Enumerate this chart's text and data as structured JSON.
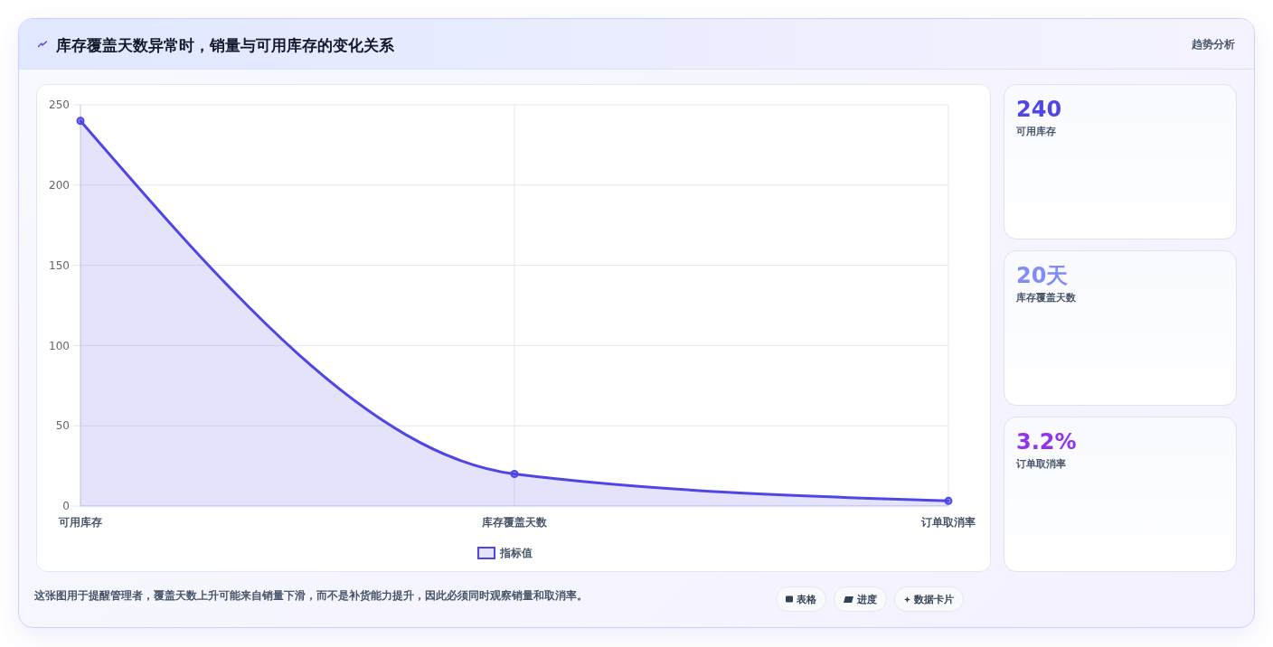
{
  "chart_data": [
    {
      "type": "area",
      "title": "库存覆盖天数异常时，销量与可用库存的变化关系",
      "categories": [
        "可用库存",
        "库存覆盖天数",
        "订单取消率"
      ],
      "series": [
        {
          "name": "指标值",
          "color": "#4f46e5",
          "values": [
            240,
            20,
            3.2
          ]
        }
      ],
      "ylim": [
        0,
        250
      ],
      "yticks": [
        0,
        50,
        100,
        150,
        200,
        250
      ],
      "grid": true,
      "legend": "bottom",
      "marker": "circle",
      "annotations": [
        "趋势分析",
        "这张图用于提醒管理者，覆盖天数上升可能来自销量下滑，而不是补货能力提升，因此必须同时观察销量和取消率。",
        "表格",
        "进度",
        "数据卡片"
      ]
    },
    {
      "type": "other",
      "annotations": [
        "240",
        "可用库存",
        "20天",
        "库存覆盖天数",
        "3.2%",
        "订单取消率"
      ]
    }
  ]
}
